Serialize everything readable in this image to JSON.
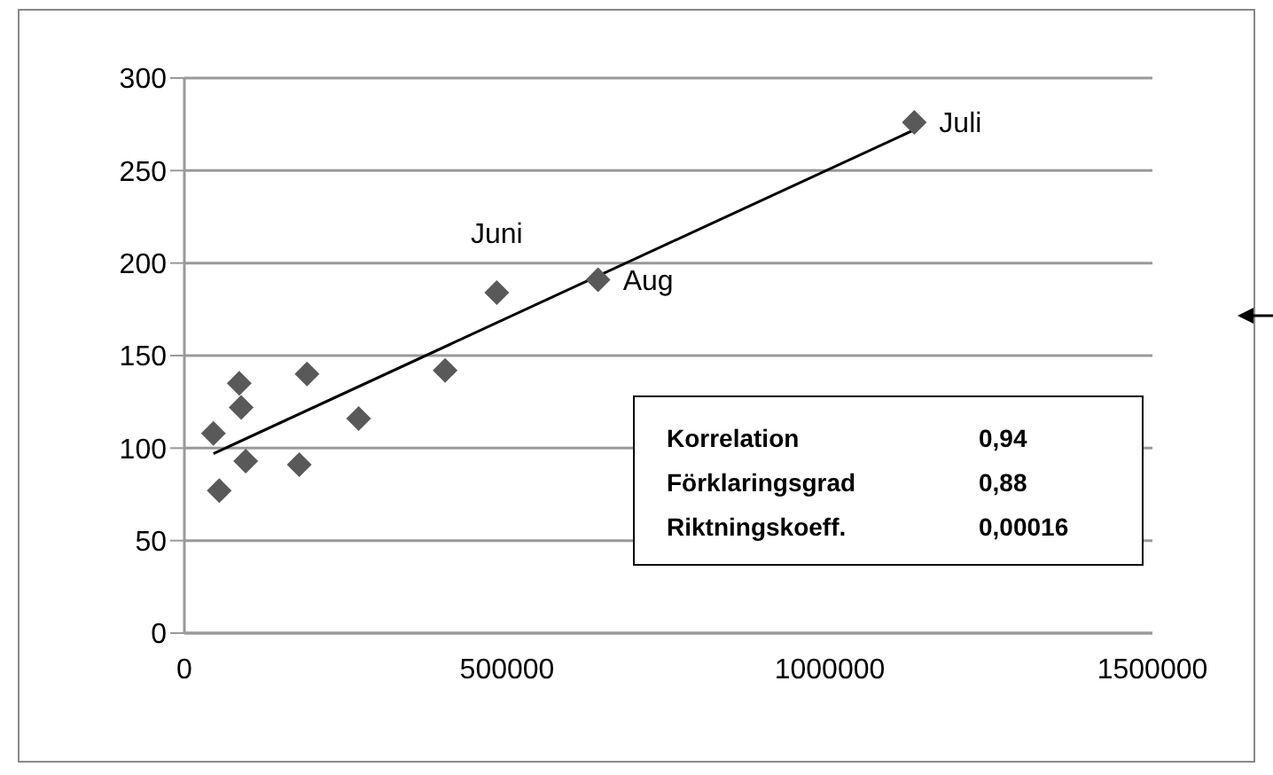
{
  "chart_data": {
    "type": "scatter",
    "grid": "y",
    "series": [
      {
        "marker": "diamond",
        "color": "#595959",
        "x": [
          45000,
          54000,
          85000,
          88000,
          95000,
          178000,
          190000,
          270000,
          404000,
          484000,
          641000,
          1131000
        ],
        "values": [
          108,
          77,
          135,
          122,
          93,
          91,
          140,
          116,
          142,
          184,
          191,
          276
        ]
      },
      {
        "type": "line",
        "marker": "none",
        "color": "#000000",
        "x": [
          45000,
          1131000
        ],
        "values": [
          97,
          272
        ]
      }
    ],
    "xlim": [
      0,
      1500000
    ],
    "xticks": [
      0,
      500000,
      1000000,
      1500000
    ],
    "ylim": [
      0,
      300
    ],
    "yticks": [
      0,
      50,
      100,
      150,
      200,
      250,
      300
    ],
    "annotations": [
      {
        "text": "Juni",
        "x": 484000,
        "y": 184
      },
      {
        "text": "Aug",
        "x": 641000,
        "y": 191
      },
      {
        "text": "Juli",
        "x": 1131000,
        "y": 276
      },
      "Korrelation",
      "0,94",
      "Förklaringsgrad",
      "0,88",
      "Riktningskoeff.",
      "0,00016"
    ]
  }
}
